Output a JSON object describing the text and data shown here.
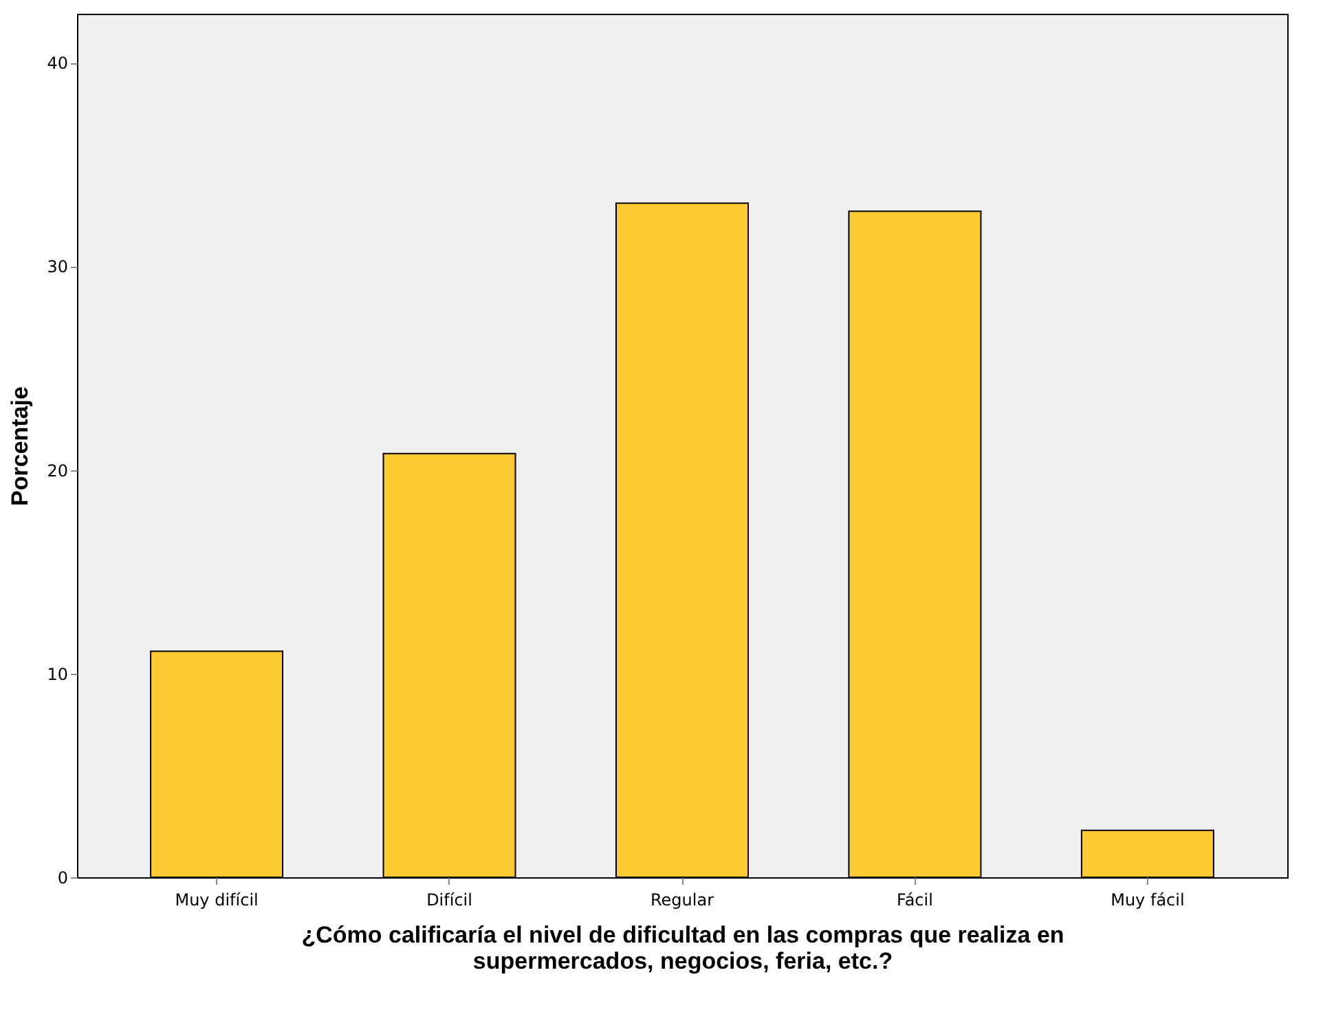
{
  "chart_data": {
    "type": "bar",
    "xlabel": "¿Cómo calificaría el nivel de dificultad en las compras que realiza en supermercados, negocios, feria, etc.?",
    "ylabel": "Porcentaje",
    "categories": [
      "Muy difícil",
      "Difícil",
      "Regular",
      "Fácil",
      "Muy fácil"
    ],
    "values": [
      11.1,
      20.8,
      33.1,
      32.7,
      2.3
    ],
    "color": "#fdca34",
    "ylim": [
      0,
      42.4
    ],
    "yticks": [
      0,
      10,
      20,
      30,
      40
    ],
    "grid": false
  }
}
